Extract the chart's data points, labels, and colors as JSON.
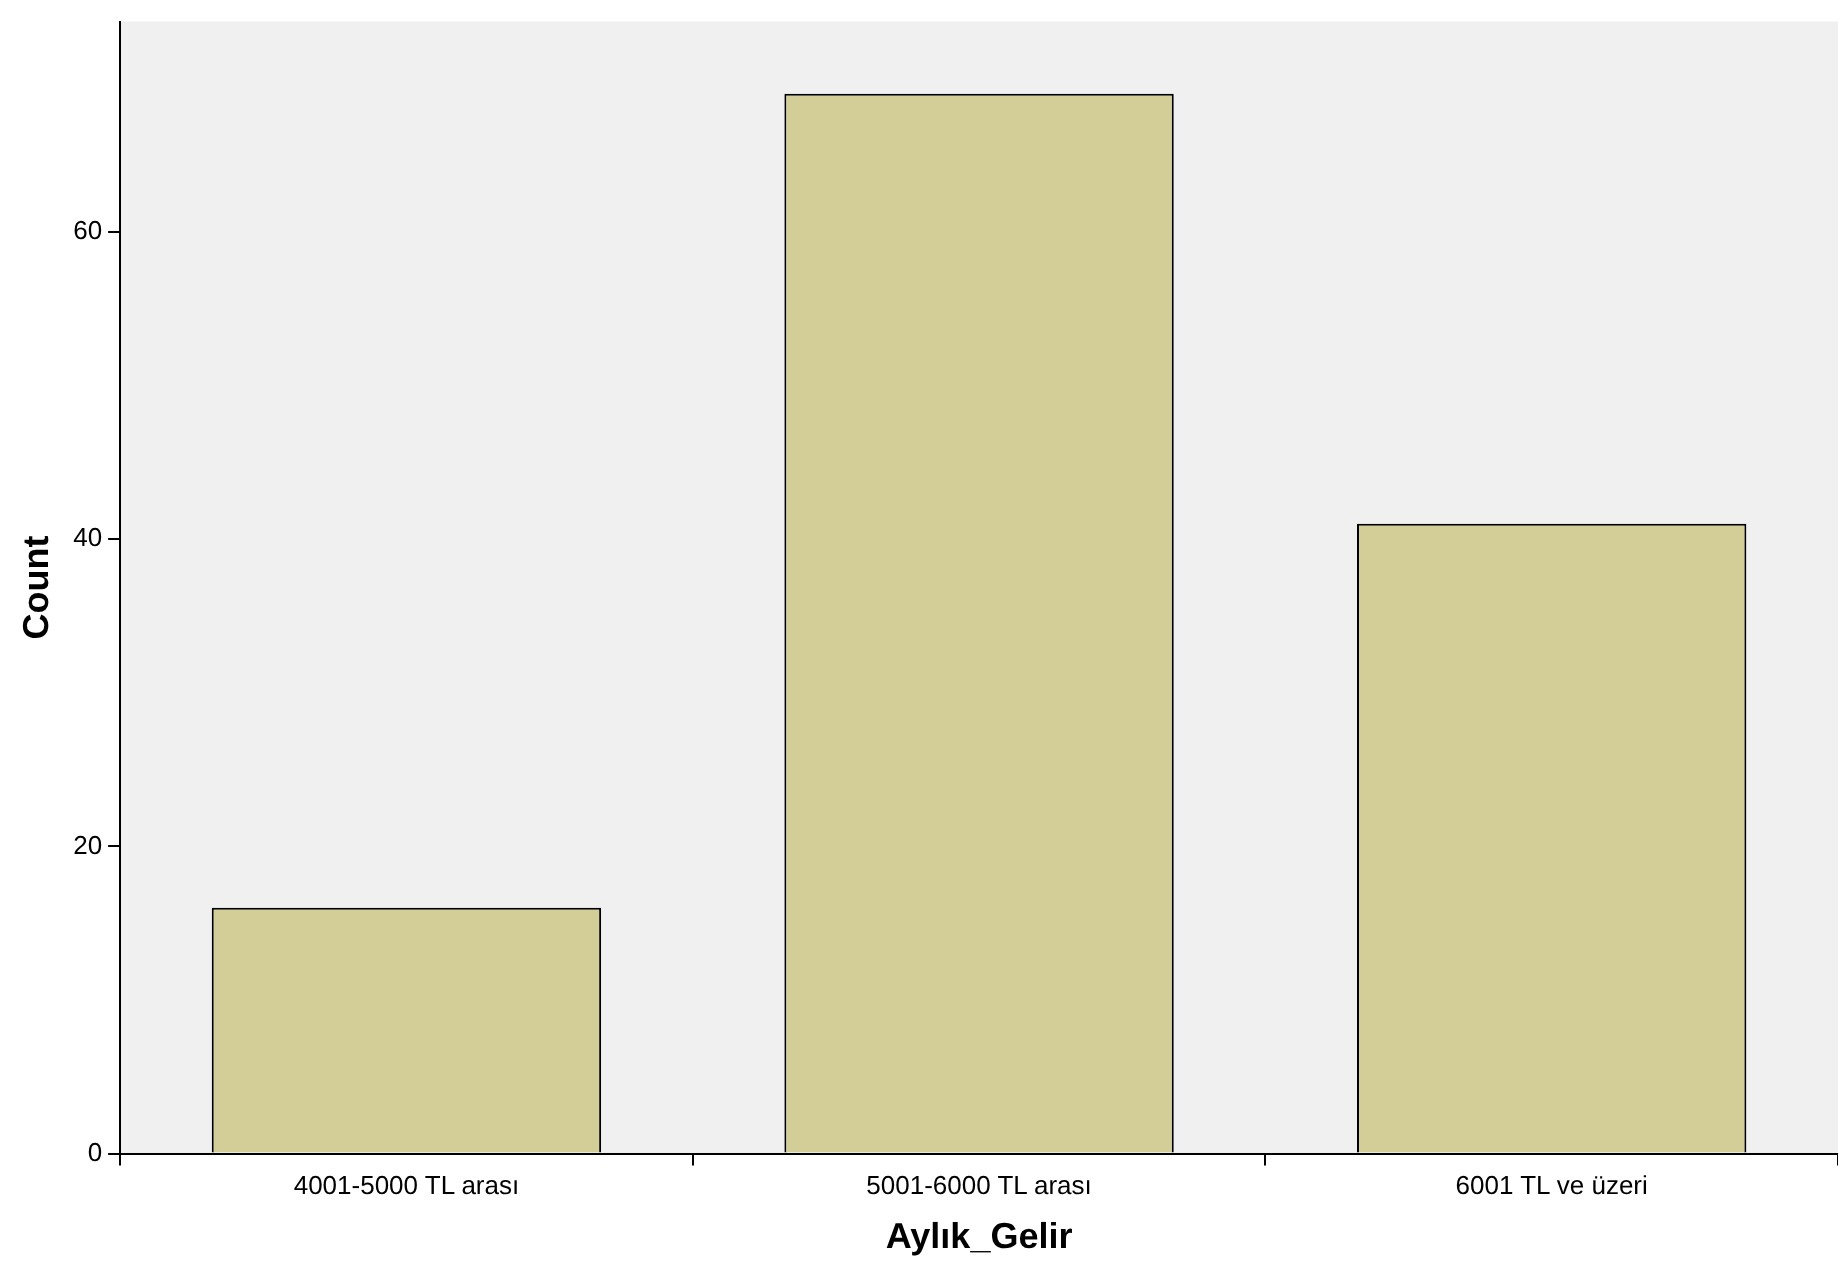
{
  "chart_data": {
    "type": "bar",
    "xlabel": "Aylık_Gelir",
    "ylabel": "Count",
    "categories": [
      "4001-5000 TL arası",
      "5001-6000 TL arası",
      "6001 TL ve üzeri"
    ],
    "values": [
      16,
      69,
      41
    ],
    "color": "#d3ce97",
    "ylim": [
      0,
      73.7
    ],
    "yticks": [
      0,
      20,
      40,
      60
    ],
    "grid": false,
    "legend": false
  }
}
